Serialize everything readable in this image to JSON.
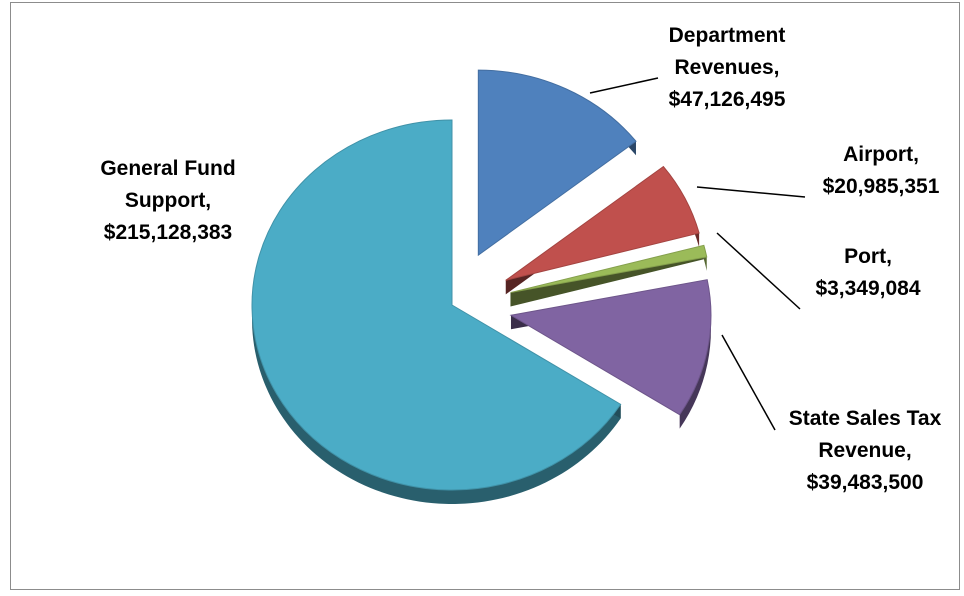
{
  "chart_data": {
    "type": "pie",
    "title": "",
    "legend": "none",
    "slices": [
      {
        "name": "Department Revenues",
        "value": 47126495,
        "color": "#4f81bd",
        "label_lines": [
          "Department",
          "Revenues,",
          "$47,126,495"
        ]
      },
      {
        "name": "Airport",
        "value": 20985351,
        "color": "#c0504d",
        "label_lines": [
          "Airport,",
          "$20,985,351"
        ]
      },
      {
        "name": "Port",
        "value": 3349084,
        "color": "#9bbb59",
        "label_lines": [
          "Port,",
          "$3,349,084"
        ]
      },
      {
        "name": "State Sales Tax Revenue",
        "value": 39483500,
        "color": "#8064a2",
        "label_lines": [
          "State Sales Tax",
          "Revenue,",
          "$39,483,500"
        ]
      },
      {
        "name": "General Fund Support",
        "value": 215128383,
        "color": "#4bacc6",
        "label_lines": [
          "General Fund",
          "Support,",
          "$215,128,383"
        ]
      }
    ]
  }
}
